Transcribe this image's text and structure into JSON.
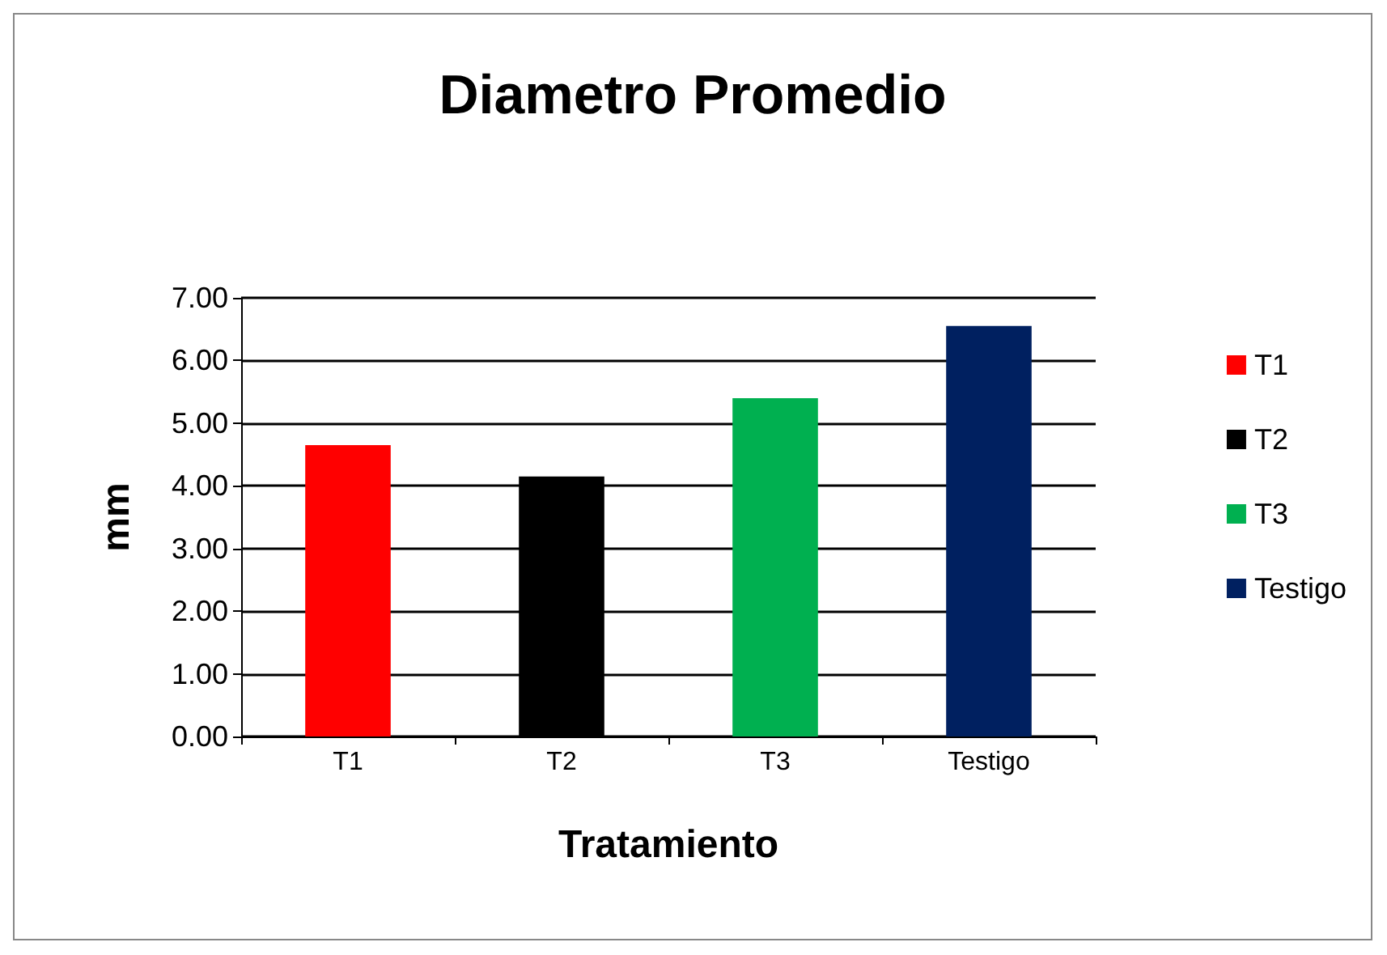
{
  "chart_data": {
    "type": "bar",
    "title": "Diametro Promedio",
    "xlabel": "Tratamiento",
    "ylabel": "mm",
    "categories": [
      "T1",
      "T2",
      "T3",
      "Testigo"
    ],
    "series": [
      {
        "name": "T1",
        "color": "#ff0000",
        "values": [
          4.65,
          null,
          null,
          null
        ]
      },
      {
        "name": "T2",
        "color": "#000000",
        "values": [
          null,
          4.15,
          null,
          null
        ]
      },
      {
        "name": "T3",
        "color": "#00b050",
        "values": [
          null,
          null,
          5.4,
          null
        ]
      },
      {
        "name": "Testigo",
        "color": "#002060",
        "values": [
          null,
          null,
          null,
          6.55
        ]
      }
    ],
    "stacked": true,
    "ylim": [
      0,
      7
    ],
    "yticks": [
      {
        "value": 0,
        "label": "0.00"
      },
      {
        "value": 1,
        "label": "1.00"
      },
      {
        "value": 2,
        "label": "2.00"
      },
      {
        "value": 3,
        "label": "3.00"
      },
      {
        "value": 4,
        "label": "4.00"
      },
      {
        "value": 5,
        "label": "5.00"
      },
      {
        "value": 6,
        "label": "6.00"
      },
      {
        "value": 7,
        "label": "7.00"
      }
    ],
    "grid": "y",
    "legend": "right"
  }
}
